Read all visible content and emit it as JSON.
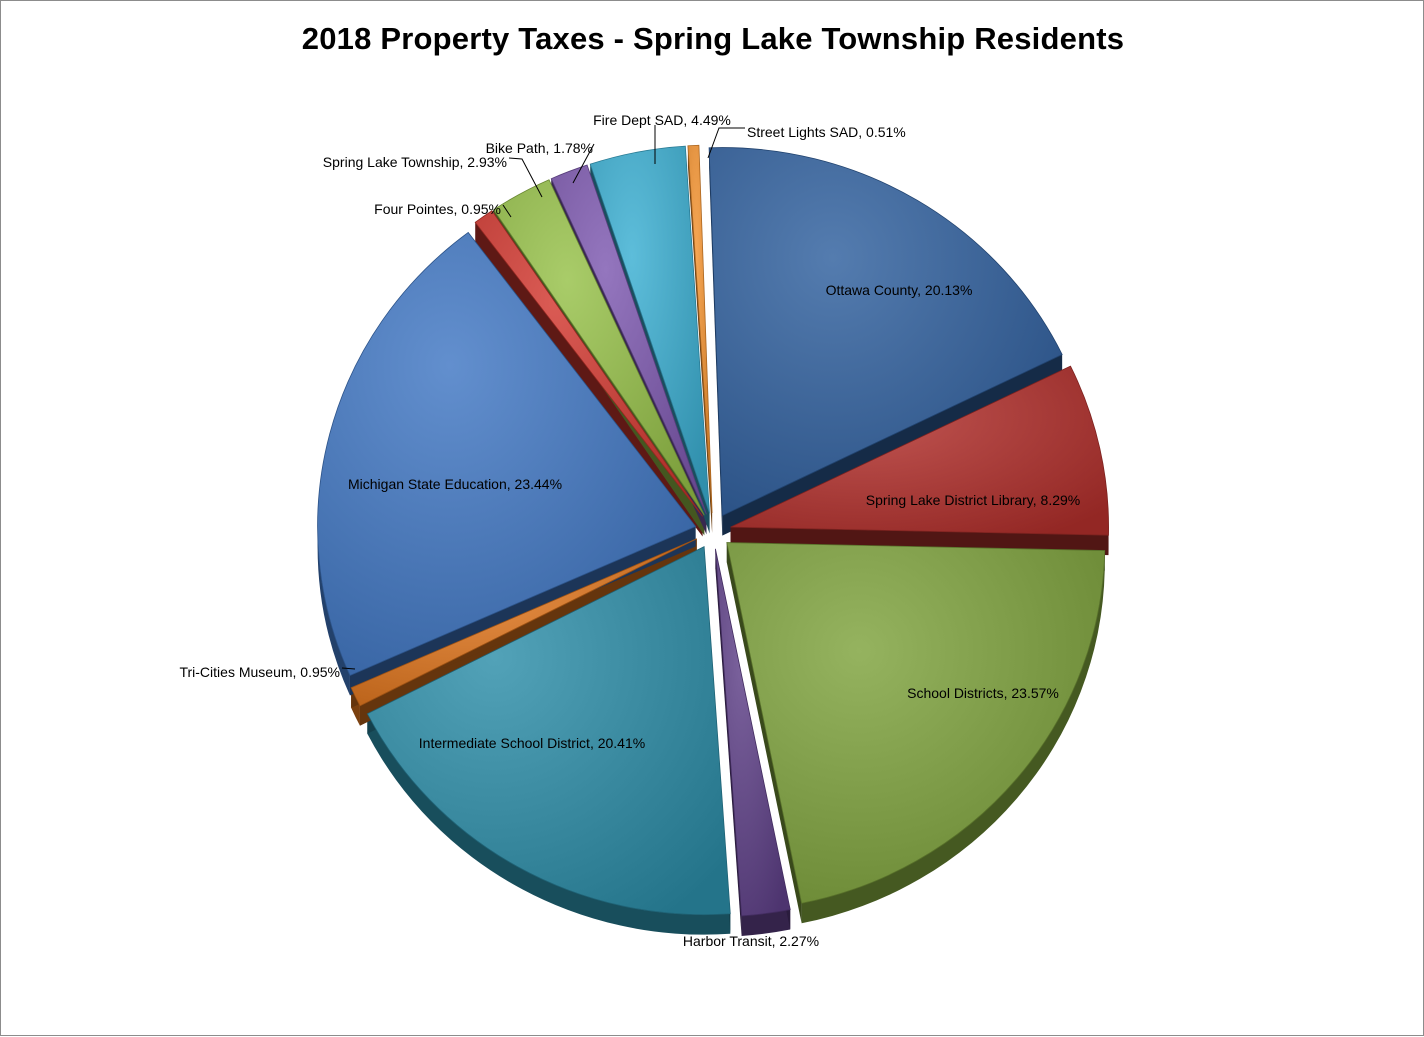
{
  "chart_data": {
    "type": "pie",
    "title": "2018 Property Taxes - Spring Lake Township Residents",
    "slices": [
      {
        "label": "Ottawa County",
        "value": 20.13,
        "display": "Ottawa County, 20.13%",
        "color": "#2f5f9e"
      },
      {
        "label": "Spring Lake District Library",
        "value": 8.29,
        "display": "Spring Lake District Library, 8.29%",
        "color": "#b3302c"
      },
      {
        "label": "School Districts",
        "value": 23.57,
        "display": "School Districts, 23.57%",
        "color": "#7ea23c"
      },
      {
        "label": "Harbor Transit",
        "value": 2.27,
        "display": "Harbor Transit, 2.27%",
        "color": "#5e3f87"
      },
      {
        "label": "Intermediate School District",
        "value": 20.41,
        "display": "Intermediate School District, 20.41%",
        "color": "#2c8ea8"
      },
      {
        "label": "Tri-Cities Museum",
        "value": 0.95,
        "display": "Tri-Cities Museum, 0.95%",
        "color": "#e0751c"
      },
      {
        "label": "Michigan State Education",
        "value": 23.44,
        "display": "Michigan State Education, 23.44%",
        "color": "#3f76c3"
      },
      {
        "label": "Four Pointes",
        "value": 0.95,
        "display": "Four Pointes, 0.95%",
        "color": "#d2372f"
      },
      {
        "label": "Spring Lake Township",
        "value": 2.93,
        "display": "Spring Lake Township, 2.93%",
        "color": "#96c148"
      },
      {
        "label": "Bike Path",
        "value": 1.78,
        "display": "Bike Path, 1.78%",
        "color": "#7d58b0"
      },
      {
        "label": "Fire Dept SAD",
        "value": 4.49,
        "display": "Fire Dept SAD, 4.49%",
        "color": "#3aaed2"
      },
      {
        "label": "Street Lights SAD",
        "value": 0.51,
        "display": "Street Lights SAD, 0.51%",
        "color": "#f4922e"
      }
    ],
    "legend": "none",
    "labels": "category name and percentage on slices"
  }
}
